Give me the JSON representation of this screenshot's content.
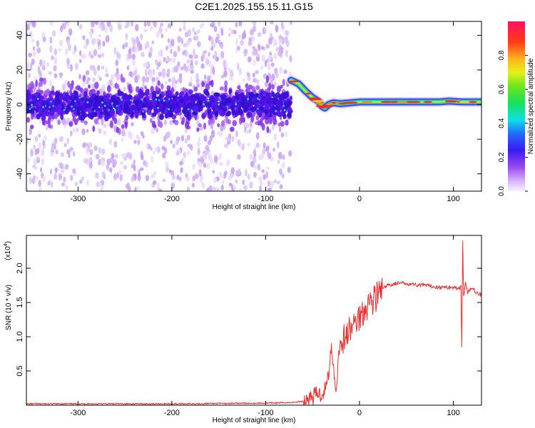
{
  "title": "C2E1.2025.155.15.11.G15",
  "chart_data": [
    {
      "type": "heatmap",
      "xlabel": "Height of straight line (km)",
      "ylabel": "Frequency (Hz)",
      "xlim": [
        -355,
        130
      ],
      "ylim": [
        -50,
        48
      ],
      "x_ticks": [
        "-300",
        "-200",
        "-100",
        "0",
        "100"
      ],
      "x_tick_values": [
        -300,
        -200,
        -100,
        0,
        100
      ],
      "y_ticks": [
        "40",
        "20",
        "0",
        "-20",
        "-40"
      ],
      "y_tick_values": [
        40,
        20,
        0,
        -20,
        -40
      ],
      "colorbar": {
        "label": "Normalized spectral amplitude",
        "range": [
          0,
          1
        ],
        "ticks": [
          "0.0",
          "0.2",
          "0.4",
          "0.6",
          "0.8"
        ],
        "tick_values": [
          0.0,
          0.2,
          0.4,
          0.6,
          0.8
        ]
      },
      "noise_region": {
        "x_range": [
          -355,
          -73
        ],
        "band_center_hz": 0,
        "band_halfwidth_hz": 8,
        "scatter_range_hz": [
          -50,
          48
        ]
      },
      "signal_ridge": [
        {
          "x": -73,
          "y": 14
        },
        {
          "x": -65,
          "y": 12
        },
        {
          "x": -58,
          "y": 8
        },
        {
          "x": -50,
          "y": 4
        },
        {
          "x": -44,
          "y": 2
        },
        {
          "x": -40,
          "y": -1
        },
        {
          "x": -37,
          "y": -2
        },
        {
          "x": -33,
          "y": 0
        },
        {
          "x": -28,
          "y": 1
        },
        {
          "x": -20,
          "y": 0.5
        },
        {
          "x": -10,
          "y": 1
        },
        {
          "x": 0,
          "y": 1.5
        },
        {
          "x": 10,
          "y": 1.5
        },
        {
          "x": 40,
          "y": 1.5
        },
        {
          "x": 85,
          "y": 1.5
        },
        {
          "x": 95,
          "y": 2
        },
        {
          "x": 110,
          "y": 1.5
        },
        {
          "x": 130,
          "y": 1.5
        }
      ]
    },
    {
      "type": "line",
      "xlabel": "Height of straight line (km)",
      "ylabel": "SNR (10 * v/v)",
      "y_scale_note": "(x10",
      "y_scale_exp": "4",
      "xlim": [
        -355,
        130
      ],
      "ylim": [
        0,
        2.48
      ],
      "x_ticks": [
        "-300",
        "-200",
        "-100",
        "0",
        "100"
      ],
      "x_tick_values": [
        -300,
        -200,
        -100,
        0,
        100
      ],
      "y_ticks": [
        "2.0",
        "1.5",
        "1.0",
        "0.5"
      ],
      "y_tick_values": [
        2.0,
        1.5,
        1.0,
        0.5
      ],
      "color": "#e83030",
      "series": [
        {
          "x": [
            -355,
            -300,
            -200,
            -100,
            -70,
            -60,
            -50,
            -45,
            -40,
            -35,
            -32,
            -30,
            -28,
            -26,
            -25,
            -22,
            -20,
            -15,
            -10,
            -5,
            0,
            5,
            10,
            15,
            20,
            25,
            30,
            40,
            50,
            60,
            70,
            80,
            90,
            100,
            105,
            108,
            109,
            110,
            111,
            113,
            115,
            120,
            125,
            130
          ],
          "y": [
            0.02,
            0.02,
            0.02,
            0.03,
            0.04,
            0.06,
            0.12,
            0.18,
            0.15,
            0.3,
            0.55,
            0.9,
            0.6,
            0.3,
            0.2,
            0.8,
            0.9,
            1.0,
            1.1,
            1.2,
            1.3,
            1.4,
            1.5,
            1.55,
            1.62,
            1.7,
            1.75,
            1.78,
            1.78,
            1.76,
            1.75,
            1.73,
            1.72,
            1.72,
            1.7,
            1.75,
            0.85,
            2.4,
            1.6,
            1.8,
            1.65,
            1.7,
            1.65,
            1.62
          ]
        }
      ]
    }
  ]
}
